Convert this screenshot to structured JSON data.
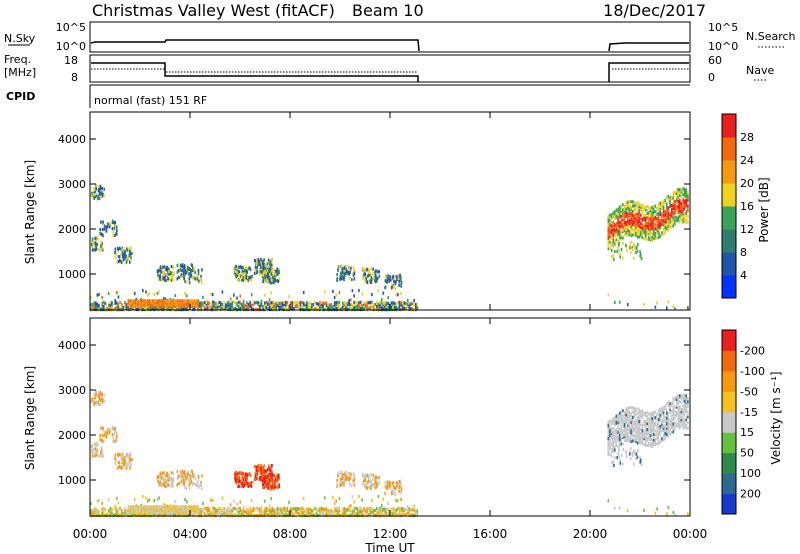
{
  "header": {
    "title": "Christmas Valley West (fitACF)",
    "beam": "Beam 10",
    "date": "18/Dec/2017"
  },
  "small_panels": {
    "nsky_label": "N.Sky",
    "nsky_ticks": [
      "10^5",
      "10^0"
    ],
    "nsearch_label": "N.Search",
    "nsearch_ticks": [
      "10^5",
      "10^0"
    ],
    "freq_label_1": "Freq.",
    "freq_label_2": "[MHz]",
    "freq_ticks": [
      "18",
      "8"
    ],
    "nave_label": "Nave",
    "nave_ticks": [
      "60",
      "0"
    ],
    "cpid_label": "CPID",
    "cpid_text": "normal (fast) 151 RF"
  },
  "chart_data": [
    {
      "type": "heatmap",
      "title": "",
      "xlabel": "",
      "ylabel": "Slant Range [km]",
      "x_ticks": [
        "00:00",
        "04:00",
        "08:00",
        "12:00",
        "16:00",
        "20:00",
        "00:00"
      ],
      "y_ticks": [
        "1000",
        "2000",
        "3000",
        "4000"
      ],
      "ylim": [
        200,
        4600
      ],
      "colorbar": {
        "label": "Power [dB]",
        "ticks": [
          "4",
          "8",
          "12",
          "16",
          "20",
          "24",
          "28"
        ],
        "colors": [
          "#0033ff",
          "#2255aa",
          "#2e7d6e",
          "#3aa35a",
          "#f0d020",
          "#f59a10",
          "#f26a10",
          "#e82020"
        ]
      },
      "data_ranges_utc": [
        [
          0.0,
          13.1
        ],
        [
          20.7,
          24.0
        ]
      ]
    },
    {
      "type": "heatmap",
      "title": "",
      "xlabel": "Time UT",
      "ylabel": "Slant Range [km]",
      "x_ticks": [
        "00:00",
        "04:00",
        "08:00",
        "12:00",
        "16:00",
        "20:00",
        "00:00"
      ],
      "y_ticks": [
        "1000",
        "2000",
        "3000",
        "4000"
      ],
      "ylim": [
        200,
        4600
      ],
      "colorbar": {
        "label": "Velocity [m s⁻¹]",
        "ticks": [
          "200",
          "100",
          "50",
          "15",
          "-15",
          "-50",
          "-100",
          "-200"
        ],
        "colors": [
          "#1a3acc",
          "#2e6a8f",
          "#2e8a4a",
          "#66c040",
          "#c8c8c8",
          "#f5c020",
          "#f59a10",
          "#f26a10",
          "#e82020"
        ]
      },
      "data_ranges_utc": [
        [
          0.0,
          13.1
        ],
        [
          20.7,
          24.0
        ]
      ]
    }
  ]
}
